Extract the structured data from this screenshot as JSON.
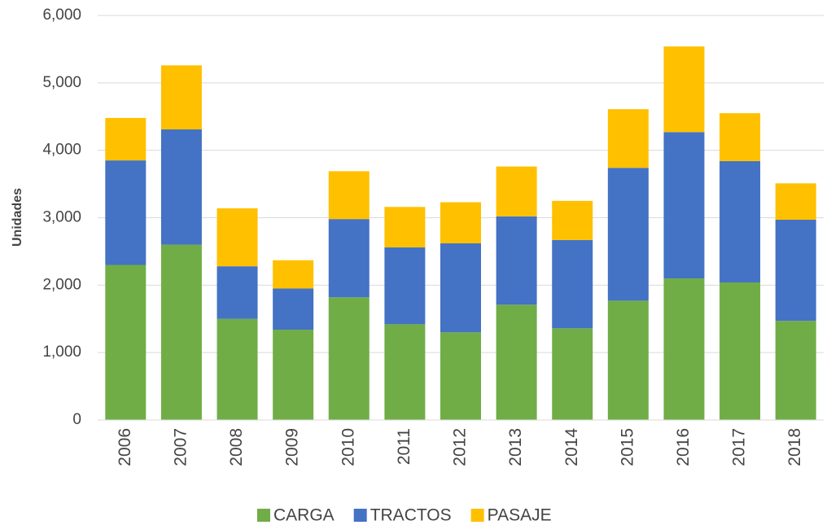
{
  "chart_data": {
    "type": "stacked_bar",
    "y_label": "Unidades",
    "categories": [
      "2006",
      "2007",
      "2008",
      "2009",
      "2010",
      "2011",
      "2012",
      "2013",
      "2014",
      "2015",
      "2016",
      "2017",
      "2018"
    ],
    "series": [
      {
        "name": "CARGA",
        "color": "#70ad47",
        "values": [
          2300,
          2600,
          1500,
          1340,
          1820,
          1420,
          1300,
          1710,
          1360,
          1770,
          2100,
          2040,
          1470
        ]
      },
      {
        "name": "TRACTOS",
        "color": "#4472c4",
        "values": [
          1550,
          1710,
          780,
          610,
          1160,
          1140,
          1320,
          1310,
          1310,
          1970,
          2170,
          1800,
          1500
        ]
      },
      {
        "name": "PASAJE",
        "color": "#ffc000",
        "values": [
          630,
          950,
          860,
          420,
          710,
          600,
          610,
          740,
          580,
          870,
          1270,
          710,
          540
        ]
      }
    ],
    "ylim": [
      0,
      6000
    ],
    "yticks": [
      0,
      {
        "value": 1000,
        "label": "1,000"
      },
      {
        "value": 2000,
        "label": "2,000"
      },
      {
        "value": 3000,
        "label": "3,000"
      },
      {
        "value": 4000,
        "label": "4,000"
      },
      {
        "value": 5000,
        "label": "5,000"
      },
      {
        "value": 6000,
        "label": "6,000"
      }
    ],
    "grid": true,
    "legend": "bottom"
  }
}
